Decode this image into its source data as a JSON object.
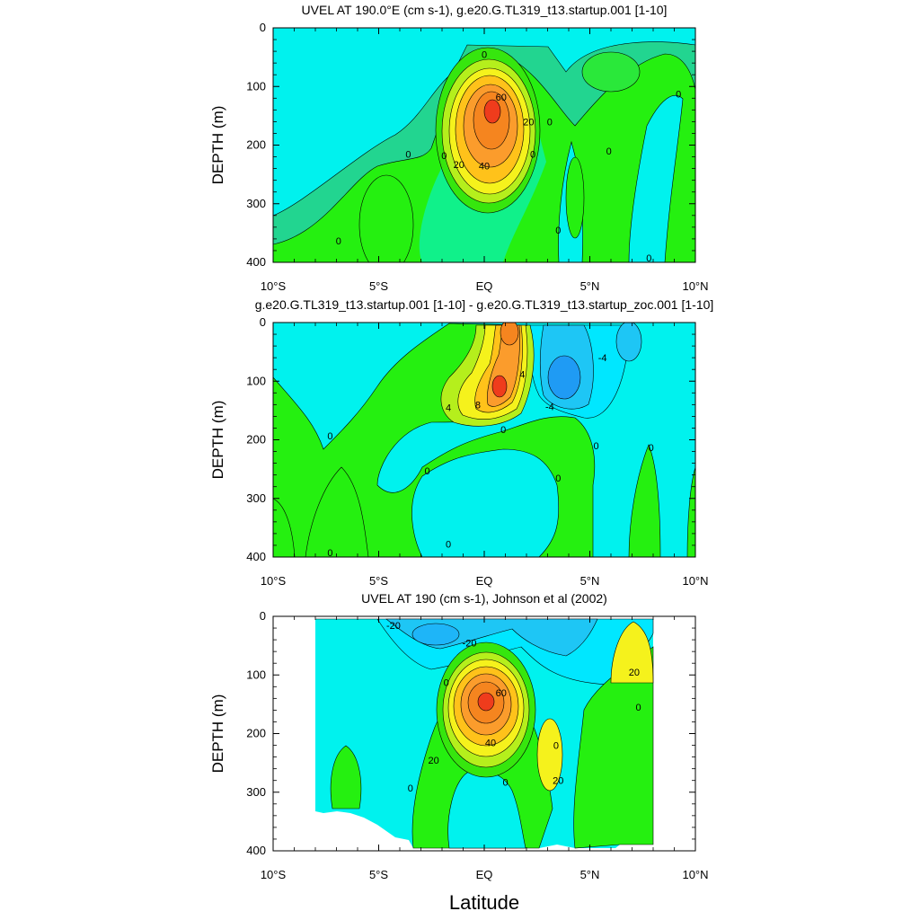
{
  "chart_data": [
    {
      "type": "contour",
      "title": "UVEL AT 190.0°E (cm s-1), g.e20.G.TL319_t13.startup.001 [1-10]",
      "ylabel": "DEPTH (m)",
      "xlabel": "",
      "xlim": [
        -10,
        10
      ],
      "ylim": [
        400,
        0
      ],
      "xticks": [
        -10,
        -5,
        0,
        5,
        10
      ],
      "xtick_labels": [
        "10°S",
        "5°S",
        "EQ",
        "5°N",
        "10°N"
      ],
      "yticks": [
        0,
        100,
        200,
        300,
        400
      ],
      "contour_labels": [
        {
          "text": "0",
          "x": 0.0,
          "y": 45
        },
        {
          "text": "60",
          "x": 0.8,
          "y": 118
        },
        {
          "text": "20",
          "x": 2.1,
          "y": 160
        },
        {
          "text": "40",
          "x": 0.0,
          "y": 235
        },
        {
          "text": "20",
          "x": -1.2,
          "y": 233
        },
        {
          "text": "0",
          "x": -1.9,
          "y": 218
        },
        {
          "text": "0",
          "x": 3.1,
          "y": 160
        },
        {
          "text": "0",
          "x": 2.3,
          "y": 215
        },
        {
          "text": "0",
          "x": -3.6,
          "y": 215
        },
        {
          "text": "0",
          "x": 3.5,
          "y": 345
        },
        {
          "text": "0",
          "x": 5.9,
          "y": 210
        },
        {
          "text": "0",
          "x": 9.2,
          "y": 113
        },
        {
          "text": "0",
          "x": -6.9,
          "y": 363
        },
        {
          "text": "0",
          "x": 7.8,
          "y": 392
        }
      ]
    },
    {
      "type": "contour",
      "title": "g.e20.G.TL319_t13.startup.001 [1-10] - g.e20.G.TL319_t13.startup_zoc.001 [1-10]",
      "ylabel": "DEPTH (m)",
      "xlabel": "",
      "xlim": [
        -10,
        10
      ],
      "ylim": [
        400,
        0
      ],
      "xticks": [
        -10,
        -5,
        0,
        5,
        10
      ],
      "xtick_labels": [
        "10°S",
        "5°S",
        "EQ",
        "5°N",
        "10°N"
      ],
      "yticks": [
        0,
        100,
        200,
        300,
        400
      ],
      "contour_labels": [
        {
          "text": "4",
          "x": 1.8,
          "y": 88
        },
        {
          "text": "-4",
          "x": 5.6,
          "y": 60
        },
        {
          "text": "4",
          "x": -1.7,
          "y": 145
        },
        {
          "text": "8",
          "x": -0.3,
          "y": 140
        },
        {
          "text": "-4",
          "x": 3.1,
          "y": 143
        },
        {
          "text": "0",
          "x": 0.9,
          "y": 182
        },
        {
          "text": "0",
          "x": -7.3,
          "y": 193
        },
        {
          "text": "0",
          "x": 5.3,
          "y": 210
        },
        {
          "text": "0",
          "x": 7.9,
          "y": 213
        },
        {
          "text": "0",
          "x": -2.7,
          "y": 253
        },
        {
          "text": "0",
          "x": 3.5,
          "y": 265
        },
        {
          "text": "0",
          "x": -1.7,
          "y": 378
        },
        {
          "text": "0",
          "x": -7.3,
          "y": 392
        }
      ]
    },
    {
      "type": "contour",
      "title": "UVEL AT 190 (cm s-1), Johnson et al (2002)",
      "ylabel": "DEPTH (m)",
      "xlabel": "Latitude",
      "xlim": [
        -10,
        10
      ],
      "ylim": [
        400,
        0
      ],
      "xticks": [
        -10,
        -5,
        0,
        5,
        10
      ],
      "xtick_labels": [
        "10°S",
        "5°S",
        "EQ",
        "5°N",
        "10°N"
      ],
      "yticks": [
        0,
        100,
        200,
        300,
        400
      ],
      "data_lat_range": [
        -8,
        8
      ],
      "contour_labels": [
        {
          "text": "-20",
          "x": -4.3,
          "y": 15
        },
        {
          "text": "-20",
          "x": -0.7,
          "y": 45
        },
        {
          "text": "20",
          "x": 7.1,
          "y": 95
        },
        {
          "text": "0",
          "x": -1.8,
          "y": 113
        },
        {
          "text": "60",
          "x": 0.8,
          "y": 130
        },
        {
          "text": "0",
          "x": 7.3,
          "y": 155
        },
        {
          "text": "40",
          "x": 0.3,
          "y": 215
        },
        {
          "text": "0",
          "x": 3.4,
          "y": 220
        },
        {
          "text": "20",
          "x": -2.4,
          "y": 245
        },
        {
          "text": "20",
          "x": 3.5,
          "y": 280
        },
        {
          "text": "0",
          "x": 1.0,
          "y": 283
        },
        {
          "text": "0",
          "x": -3.5,
          "y": 293
        }
      ]
    }
  ]
}
